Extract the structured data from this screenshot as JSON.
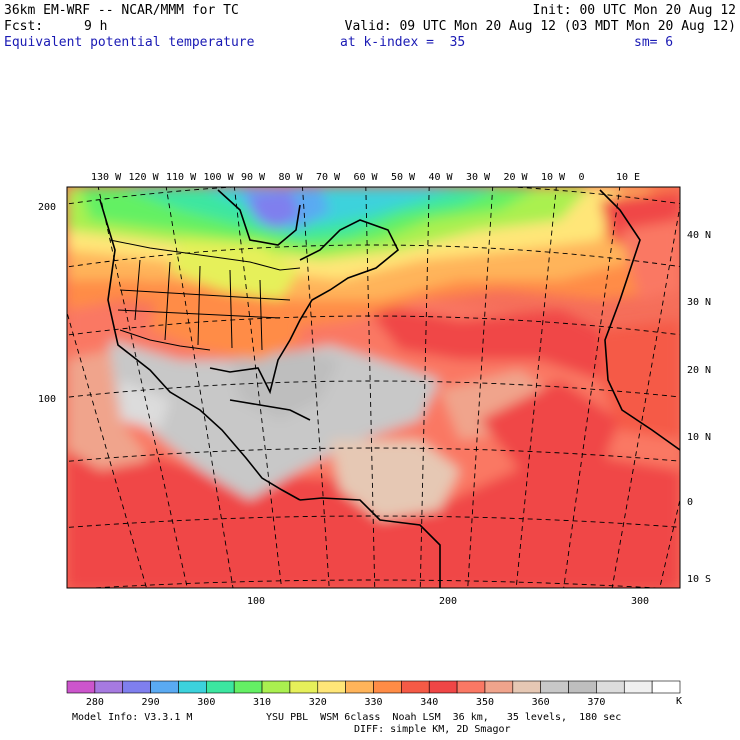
{
  "header": {
    "model_title": "36km EM-WRF -- NCAR/MMM for TC",
    "init": "Init: 00 UTC Mon 20 Aug 12",
    "fcst_label": "Fcst:",
    "fcst_value": "9 h",
    "valid": "Valid: 09 UTC Mon 20 Aug 12 (03 MDT Mon 20 Aug 12)",
    "field": "Equivalent potential temperature",
    "level": "at k-index =  35",
    "smooth": "sm= 6"
  },
  "map": {
    "top_lon_labels": [
      "130 W",
      "120 W",
      "110 W",
      "100 W",
      "90 W",
      "80 W",
      "70 W",
      "60 W",
      "50 W",
      "40 W",
      "30 W",
      "20 W",
      "10 W",
      "0",
      "10 E"
    ],
    "right_lat_labels": [
      "40 N",
      "30 N",
      "20 N",
      "10 N",
      "0",
      "10 S"
    ],
    "left_grid_labels": [
      "200",
      "100"
    ],
    "bottom_grid_labels": [
      "100",
      "200",
      "300"
    ]
  },
  "colorbar": {
    "labels": [
      "280",
      "290",
      "300",
      "310",
      "320",
      "330",
      "340",
      "350",
      "360",
      "370"
    ],
    "unit": "K",
    "colors": [
      "#cc55cc",
      "#a67ae0",
      "#7f7fee",
      "#5aaaf2",
      "#3cd2dc",
      "#3ce6a0",
      "#64f064",
      "#aaf050",
      "#e6f05a",
      "#ffe678",
      "#ffb45a",
      "#ff8c46",
      "#f55a46",
      "#f04646",
      "#fa7864",
      "#f0a48c",
      "#e6c8b4",
      "#c8c8c8",
      "#bebebe",
      "#dcdcdc",
      "#f0f0f0",
      "#ffffff"
    ]
  },
  "footer": {
    "model_info": "Model Info: V3.3.1 M",
    "physics": "YSU PBL  WSM 6class  Noah LSM  36 km,   35 levels,  180 sec",
    "diffusion": "DIFF: simple KM, 2D Smagor"
  }
}
